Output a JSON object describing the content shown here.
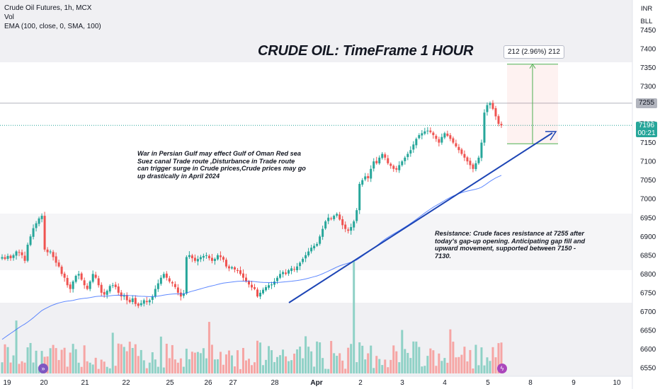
{
  "legend": {
    "symbol": "Crude Oil Futures, 1h, MCX",
    "vol": "Vol",
    "ema": "EMA (100, close, 0, SMA, 100)"
  },
  "title": "CRUDE OIL: TimeFrame 1 HOUR",
  "note_left": "War in Persian Gulf may effect Gulf of Oman Red sea Suez canal Trade route ,Disturbance in Trade route can trigger surge in Crude prices,Crude prices may go up drastically in April 2024",
  "note_right": {
    "line1": "Resistance: Crude faces resistance at 7255 after",
    "line2": " today's gap-up opening. Anticipating gap fill and",
    "line3": " upward movement, supported between 7150 -",
    "line4": "7130."
  },
  "measure_label": "212 (2.96%) 212",
  "currency_buttons": [
    "INR",
    "BLL"
  ],
  "price_labels": {
    "resistance": "7255",
    "current": "7196",
    "countdown": "00:21"
  },
  "colors": {
    "up": "#26a69a",
    "down": "#ef5350",
    "ema": "#2962ff",
    "trendline": "#1d45b5",
    "measure": "#4caf50",
    "vol_up": "#8fd1c6",
    "vol_down": "#f6a5a4"
  },
  "icons": [
    "fast-forward-icon",
    "lightning-icon"
  ],
  "chart_data": {
    "type": "candlestick",
    "y_axis_ticks": [
      7450,
      7400,
      7350,
      7300,
      7250,
      7200,
      7150,
      7100,
      7050,
      7000,
      6950,
      6900,
      6850,
      6800,
      6750,
      6700,
      6650,
      6600,
      6550
    ],
    "ylim": [
      6522,
      7477
    ],
    "x_axis_ticks": [
      "19",
      "20",
      "21",
      "22",
      "25",
      "26",
      "27",
      "28",
      "Apr",
      "2",
      "3",
      "4",
      "5",
      "8",
      "9",
      "10"
    ],
    "resistance_level": 7255,
    "current_price": 7196,
    "measure": {
      "from": 7147,
      "to": 7359,
      "change": 212,
      "percent": "2.96%"
    },
    "series": [
      {
        "name": "Crude Oil Futures",
        "type": "ohlc",
        "close": [
          6845,
          6840,
          6848,
          6842,
          6850,
          6860,
          6858,
          6850,
          6835,
          6878,
          6900,
          6922,
          6935,
          6948,
          6955,
          6865,
          6858,
          6860,
          6845,
          6830,
          6820,
          6800,
          6790,
          6770,
          6760,
          6780,
          6795,
          6800,
          6785,
          6770,
          6760,
          6780,
          6800,
          6790,
          6770,
          6750,
          6745,
          6755,
          6768,
          6770,
          6765,
          6750,
          6740,
          6742,
          6730,
          6725,
          6735,
          6720,
          6715,
          6722,
          6730,
          6725,
          6730,
          6740,
          6760,
          6775,
          6790,
          6800,
          6790,
          6780,
          6775,
          6765,
          6750,
          6740,
          6748,
          6845,
          6850,
          6842,
          6835,
          6840,
          6845,
          6848,
          6850,
          6842,
          6835,
          6840,
          6850,
          6845,
          6838,
          6820,
          6815,
          6818,
          6812,
          6808,
          6800,
          6790,
          6780,
          6772,
          6764,
          6760,
          6740,
          6750,
          6758,
          6765,
          6770,
          6772,
          6780,
          6790,
          6800,
          6805,
          6800,
          6810,
          6815,
          6812,
          6820,
          6830,
          6840,
          6850,
          6860,
          6870,
          6875,
          6880,
          6900,
          6920,
          6940,
          6950,
          6948,
          6955,
          6960,
          6945,
          6930,
          6920,
          6915,
          6925,
          6940,
          6970,
          7040,
          7050,
          7060,
          7055,
          7080,
          7100,
          7095,
          7110,
          7120,
          7110,
          7095,
          7088,
          7080,
          7078,
          7090,
          7100,
          7110,
          7120,
          7130,
          7145,
          7160,
          7170,
          7175,
          7180,
          7182,
          7178,
          7170,
          7160,
          7150,
          7165,
          7175,
          7168,
          7160,
          7150,
          7140,
          7130,
          7120,
          7110,
          7100,
          7090,
          7080,
          7095,
          7110,
          7150,
          7230,
          7250,
          7255,
          7240,
          7220,
          7200,
          7196
        ]
      }
    ],
    "volume_relative": true
  }
}
